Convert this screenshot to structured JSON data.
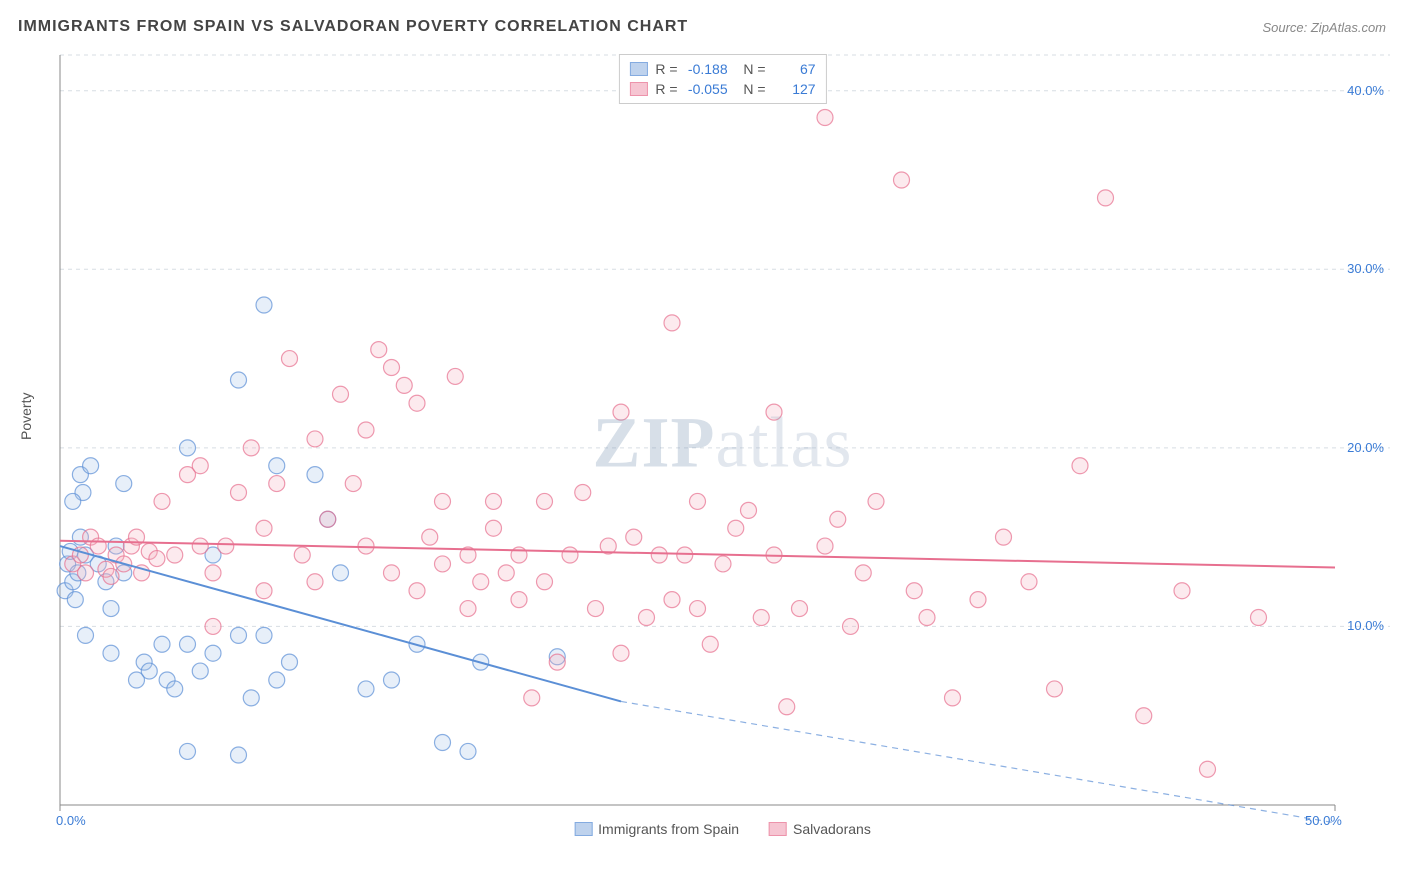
{
  "title": "IMMIGRANTS FROM SPAIN VS SALVADORAN POVERTY CORRELATION CHART",
  "source": "Source: ZipAtlas.com",
  "watermark": {
    "left": "ZIP",
    "right": "atlas"
  },
  "y_axis_label": "Poverty",
  "chart": {
    "type": "scatter",
    "xlim": [
      0,
      50
    ],
    "ylim": [
      0,
      42
    ],
    "x_ticks": [
      {
        "v": 0,
        "label": "0.0%"
      },
      {
        "v": 50,
        "label": "50.0%"
      }
    ],
    "y_ticks": [
      {
        "v": 10,
        "label": "10.0%"
      },
      {
        "v": 20,
        "label": "20.0%"
      },
      {
        "v": 30,
        "label": "30.0%"
      },
      {
        "v": 40,
        "label": "40.0%"
      }
    ],
    "grid_color": "#d7dde3",
    "grid_dash": "4,4",
    "axis_color": "#888",
    "background_color": "#ffffff",
    "marker_radius": 8,
    "marker_stroke_width": 1.2,
    "marker_fill_opacity": 0.28,
    "line_width": 2
  },
  "series": [
    {
      "name": "Immigrants from Spain",
      "color": "#5b8fd6",
      "fill": "#a9c4e8",
      "R": "-0.188",
      "N": "67",
      "trend": {
        "x1": 0,
        "y1": 14.5,
        "x2": 22,
        "y2": 5.8,
        "dash_x2": 50,
        "dash_y2": -1.0
      },
      "points": [
        [
          0.2,
          12.0
        ],
        [
          0.3,
          13.5
        ],
        [
          0.4,
          14.2
        ],
        [
          0.5,
          12.5
        ],
        [
          0.6,
          11.5
        ],
        [
          0.7,
          13.0
        ],
        [
          0.8,
          15.0
        ],
        [
          0.9,
          17.5
        ],
        [
          1.0,
          14.0
        ],
        [
          0.5,
          17.0
        ],
        [
          0.8,
          18.5
        ],
        [
          1.2,
          19.0
        ],
        [
          1.0,
          9.5
        ],
        [
          1.5,
          13.5
        ],
        [
          1.8,
          12.5
        ],
        [
          2.0,
          11.0
        ],
        [
          2.2,
          14.5
        ],
        [
          2.5,
          13.0
        ],
        [
          2.0,
          8.5
        ],
        [
          2.5,
          18.0
        ],
        [
          3.0,
          7.0
        ],
        [
          3.3,
          8.0
        ],
        [
          3.5,
          7.5
        ],
        [
          4.0,
          9.0
        ],
        [
          4.2,
          7.0
        ],
        [
          4.5,
          6.5
        ],
        [
          5.0,
          20.0
        ],
        [
          5.0,
          9.0
        ],
        [
          5.0,
          3.0
        ],
        [
          5.5,
          7.5
        ],
        [
          6.0,
          8.5
        ],
        [
          6.0,
          14.0
        ],
        [
          7.0,
          23.8
        ],
        [
          7.0,
          9.5
        ],
        [
          7.0,
          2.8
        ],
        [
          7.5,
          6.0
        ],
        [
          8.0,
          28.0
        ],
        [
          8.0,
          9.5
        ],
        [
          8.5,
          7.0
        ],
        [
          8.5,
          19.0
        ],
        [
          9.0,
          8.0
        ],
        [
          10.0,
          18.5
        ],
        [
          10.5,
          16.0
        ],
        [
          11.0,
          13.0
        ],
        [
          12.0,
          6.5
        ],
        [
          13.0,
          7.0
        ],
        [
          14.0,
          9.0
        ],
        [
          15.0,
          3.5
        ],
        [
          16.0,
          3.0
        ],
        [
          16.5,
          8.0
        ],
        [
          19.5,
          8.3
        ]
      ]
    },
    {
      "name": "Salvadorans",
      "color": "#e76f8f",
      "fill": "#f4b2c3",
      "R": "-0.055",
      "N": "127",
      "trend": {
        "x1": 0,
        "y1": 14.8,
        "x2": 50,
        "y2": 13.3
      },
      "points": [
        [
          0.5,
          13.5
        ],
        [
          0.8,
          14.0
        ],
        [
          1.0,
          13.0
        ],
        [
          1.2,
          15.0
        ],
        [
          1.5,
          14.5
        ],
        [
          1.8,
          13.2
        ],
        [
          2.0,
          12.8
        ],
        [
          2.2,
          14.0
        ],
        [
          2.5,
          13.5
        ],
        [
          2.8,
          14.5
        ],
        [
          3.0,
          15.0
        ],
        [
          3.2,
          13.0
        ],
        [
          3.5,
          14.2
        ],
        [
          3.8,
          13.8
        ],
        [
          4.0,
          17.0
        ],
        [
          4.5,
          14.0
        ],
        [
          5.0,
          18.5
        ],
        [
          5.5,
          14.5
        ],
        [
          5.5,
          19.0
        ],
        [
          6.0,
          10.0
        ],
        [
          6.0,
          13.0
        ],
        [
          6.5,
          14.5
        ],
        [
          7.0,
          17.5
        ],
        [
          7.5,
          20.0
        ],
        [
          8.0,
          15.5
        ],
        [
          8.0,
          12.0
        ],
        [
          8.5,
          18.0
        ],
        [
          9.0,
          25.0
        ],
        [
          9.5,
          14.0
        ],
        [
          10.0,
          20.5
        ],
        [
          10.0,
          12.5
        ],
        [
          10.5,
          16.0
        ],
        [
          11.0,
          23.0
        ],
        [
          11.5,
          18.0
        ],
        [
          12.0,
          14.5
        ],
        [
          12.0,
          21.0
        ],
        [
          12.5,
          25.5
        ],
        [
          13.0,
          24.5
        ],
        [
          13.0,
          13.0
        ],
        [
          13.5,
          23.5
        ],
        [
          14.0,
          22.5
        ],
        [
          14.0,
          12.0
        ],
        [
          14.5,
          15.0
        ],
        [
          15.0,
          17.0
        ],
        [
          15.0,
          13.5
        ],
        [
          15.5,
          24.0
        ],
        [
          16.0,
          14.0
        ],
        [
          16.0,
          11.0
        ],
        [
          16.5,
          12.5
        ],
        [
          17.0,
          15.5
        ],
        [
          17.0,
          17.0
        ],
        [
          17.5,
          13.0
        ],
        [
          18.0,
          14.0
        ],
        [
          18.0,
          11.5
        ],
        [
          18.5,
          6.0
        ],
        [
          19.0,
          12.5
        ],
        [
          19.0,
          17.0
        ],
        [
          19.5,
          8.0
        ],
        [
          20.0,
          14.0
        ],
        [
          20.5,
          17.5
        ],
        [
          21.0,
          11.0
        ],
        [
          21.5,
          14.5
        ],
        [
          22.0,
          22.0
        ],
        [
          22.0,
          8.5
        ],
        [
          22.5,
          15.0
        ],
        [
          23.0,
          10.5
        ],
        [
          23.5,
          14.0
        ],
        [
          24.0,
          11.5
        ],
        [
          24.0,
          27.0
        ],
        [
          24.5,
          14.0
        ],
        [
          25.0,
          17.0
        ],
        [
          25.0,
          11.0
        ],
        [
          25.5,
          9.0
        ],
        [
          26.0,
          13.5
        ],
        [
          26.5,
          15.5
        ],
        [
          27.0,
          16.5
        ],
        [
          27.5,
          10.5
        ],
        [
          28.0,
          14.0
        ],
        [
          28.0,
          22.0
        ],
        [
          28.5,
          5.5
        ],
        [
          29.0,
          11.0
        ],
        [
          30.0,
          38.5
        ],
        [
          30.0,
          14.5
        ],
        [
          30.5,
          16.0
        ],
        [
          31.0,
          10.0
        ],
        [
          31.5,
          13.0
        ],
        [
          32.0,
          17.0
        ],
        [
          33.0,
          35.0
        ],
        [
          33.5,
          12.0
        ],
        [
          34.0,
          10.5
        ],
        [
          35.0,
          6.0
        ],
        [
          36.0,
          11.5
        ],
        [
          37.0,
          15.0
        ],
        [
          38.0,
          12.5
        ],
        [
          39.0,
          6.5
        ],
        [
          40.0,
          19.0
        ],
        [
          41.0,
          34.0
        ],
        [
          42.5,
          5.0
        ],
        [
          44.0,
          12.0
        ],
        [
          45.0,
          2.0
        ],
        [
          47.0,
          10.5
        ]
      ]
    }
  ],
  "legend_bottom": [
    {
      "label": "Immigrants from Spain",
      "color": "#5b8fd6",
      "fill": "#a9c4e8"
    },
    {
      "label": "Salvadorans",
      "color": "#e76f8f",
      "fill": "#f4b2c3"
    }
  ]
}
